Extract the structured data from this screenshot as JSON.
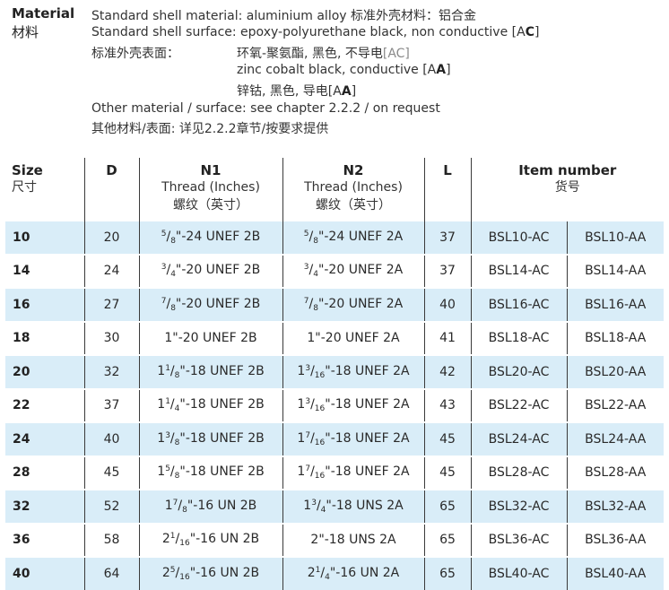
{
  "material": {
    "label": "Material",
    "label_cn": "材料",
    "line1_en": "Standard shell material: aluminium alloy",
    "line1_cn": "标准外壳材料：铝合金",
    "line2": "Standard shell surface: epoxy-polyurethane black, non conductive [A",
    "line2_code": "C",
    "line2_end": "]",
    "line3_cn": "标准外壳表面：",
    "line3_value": "环氧-聚氨酯, 黑色, 不导电",
    "line3_code": "[AC]",
    "line4": "zinc cobalt black, conductive [A",
    "line4_code": "A",
    "line4_end": "]",
    "line5": "锌钴, 黑色, 导电[A",
    "line5_code": "A",
    "line5_end": "]",
    "line6": "Other material / surface: see chapter 2.2.2 / on request",
    "line7": "其他材料/表面: 详见2.2.2章节/按要求提供"
  },
  "table": {
    "headers": {
      "size": "Size",
      "size_cn": "尺寸",
      "d": "D",
      "n1": "N1",
      "n1_sub": "Thread (Inches)",
      "n1_cn": "螺纹（英寸）",
      "n2": "N2",
      "n2_sub": "Thread (Inches)",
      "n2_cn": "螺纹（英寸）",
      "l": "L",
      "item": "Item number",
      "item_cn": "货号"
    },
    "rows": [
      {
        "size": "10",
        "d": "20",
        "n1": {
          "w": "",
          "n": "5",
          "den": "8",
          "rest": "\"-24 UNEF 2B"
        },
        "n2": {
          "w": "",
          "n": "5",
          "den": "8",
          "rest": "\"-24 UNEF 2A"
        },
        "l": "37",
        "ac": "BSL10-AC",
        "aa": "BSL10-AA"
      },
      {
        "size": "14",
        "d": "24",
        "n1": {
          "w": "",
          "n": "3",
          "den": "4",
          "rest": "\"-20 UNEF 2B"
        },
        "n2": {
          "w": "",
          "n": "3",
          "den": "4",
          "rest": "\"-20 UNEF 2A"
        },
        "l": "37",
        "ac": "BSL14-AC",
        "aa": "BSL14-AA"
      },
      {
        "size": "16",
        "d": "27",
        "n1": {
          "w": "",
          "n": "7",
          "den": "8",
          "rest": "\"-20 UNEF 2B"
        },
        "n2": {
          "w": "",
          "n": "7",
          "den": "8",
          "rest": "\"-20 UNEF 2A"
        },
        "l": "40",
        "ac": "BSL16-AC",
        "aa": "BSL16-AA"
      },
      {
        "size": "18",
        "d": "30",
        "n1": {
          "w": "1",
          "n": "",
          "den": "",
          "rest": "\"-20 UNEF 2B"
        },
        "n2": {
          "w": "1",
          "n": "",
          "den": "",
          "rest": "\"-20 UNEF 2A"
        },
        "l": "41",
        "ac": "BSL18-AC",
        "aa": "BSL18-AA"
      },
      {
        "size": "20",
        "d": "32",
        "n1": {
          "w": "1",
          "n": "1",
          "den": "8",
          "rest": "\"-18 UNEF 2B"
        },
        "n2": {
          "w": "1",
          "n": "3",
          "den": "16",
          "rest": "\"-18 UNEF 2A"
        },
        "l": "42",
        "ac": "BSL20-AC",
        "aa": "BSL20-AA"
      },
      {
        "size": "22",
        "d": "37",
        "n1": {
          "w": "1",
          "n": "1",
          "den": "4",
          "rest": "\"-18 UNEF 2B"
        },
        "n2": {
          "w": "1",
          "n": "3",
          "den": "16",
          "rest": "\"-18 UNEF 2A"
        },
        "l": "43",
        "ac": "BSL22-AC",
        "aa": "BSL22-AA"
      },
      {
        "size": "24",
        "d": "40",
        "n1": {
          "w": "1",
          "n": "3",
          "den": "8",
          "rest": "\"-18 UNEF 2B"
        },
        "n2": {
          "w": "1",
          "n": "7",
          "den": "16",
          "rest": "\"-18 UNEF 2A"
        },
        "l": "45",
        "ac": "BSL24-AC",
        "aa": "BSL24-AA"
      },
      {
        "size": "28",
        "d": "45",
        "n1": {
          "w": "1",
          "n": "5",
          "den": "8",
          "rest": "\"-18 UNEF 2B"
        },
        "n2": {
          "w": "1",
          "n": "7",
          "den": "16",
          "rest": "\"-18 UNEF 2A"
        },
        "l": "45",
        "ac": "BSL28-AC",
        "aa": "BSL28-AA"
      },
      {
        "size": "32",
        "d": "52",
        "n1": {
          "w": "1",
          "n": "7",
          "den": "8",
          "rest": "\"-16 UN 2B"
        },
        "n2": {
          "w": "1",
          "n": "3",
          "den": "4",
          "rest": "\"-18 UNS 2A"
        },
        "l": "65",
        "ac": "BSL32-AC",
        "aa": "BSL32-AA"
      },
      {
        "size": "36",
        "d": "58",
        "n1": {
          "w": "2",
          "n": "1",
          "den": "16",
          "rest": "\"-16 UN 2B"
        },
        "n2": {
          "w": "2",
          "n": "",
          "den": "",
          "rest": "\"-18 UNS 2A"
        },
        "l": "65",
        "ac": "BSL36-AC",
        "aa": "BSL36-AA"
      },
      {
        "size": "40",
        "d": "64",
        "n1": {
          "w": "2",
          "n": "5",
          "den": "16",
          "rest": "\"-16 UN 2B"
        },
        "n2": {
          "w": "2",
          "n": "1",
          "den": "4",
          "rest": "\"-16 UN 2A"
        },
        "l": "65",
        "ac": "BSL40-AC",
        "aa": "BSL40-AA"
      }
    ]
  },
  "colors": {
    "stripe": "#d9edf8",
    "rule": "#3a3a3a",
    "text": "#2a2a2a",
    "muted": "#8a8a8a"
  }
}
